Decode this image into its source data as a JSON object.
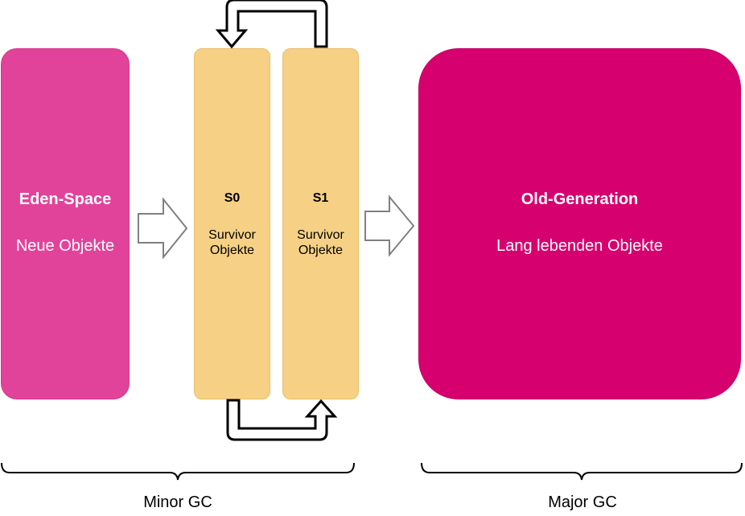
{
  "eden": {
    "title": "Eden-Space",
    "subtitle": "Neue Objekte"
  },
  "s0": {
    "title": "S0",
    "line1": "Survivor",
    "line2": "Objekte"
  },
  "s1": {
    "title": "S1",
    "line1": "Survivor",
    "line2": "Objekte"
  },
  "old_generation": {
    "title": "Old-Generation",
    "subtitle": "Lang lebenden Objekte"
  },
  "groups": {
    "minor_gc": "Minor GC",
    "major_gc": "Major GC"
  },
  "colors": {
    "eden": "#e2439a",
    "survivor": "#f6d185",
    "old_generation": "#d6006f",
    "arrow_fill": "#ffffff",
    "arrow_stroke": "#808080"
  }
}
